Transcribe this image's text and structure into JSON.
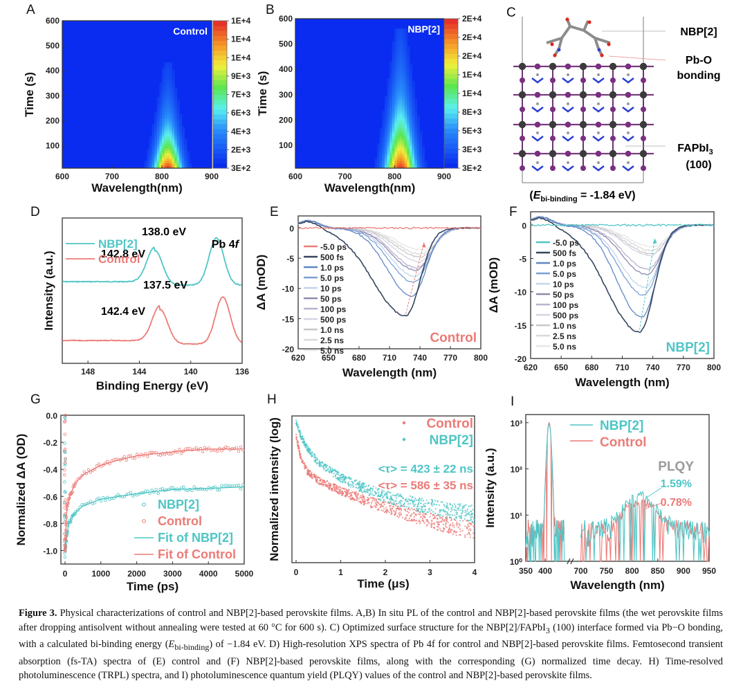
{
  "panels": {
    "A": {
      "label": "A"
    },
    "B": {
      "label": "B"
    },
    "C": {
      "label": "C"
    },
    "D": {
      "label": "D"
    },
    "E": {
      "label": "E"
    },
    "F": {
      "label": "F"
    },
    "G": {
      "label": "G"
    },
    "H": {
      "label": "H"
    },
    "I": {
      "label": "I"
    }
  },
  "colors": {
    "nbp": "#4fc5c5",
    "control": "#ec7b77",
    "heat_low": "#0a2cf0"
  },
  "chart_data": [
    {
      "id": "A",
      "type": "heatmap",
      "title": "Control",
      "xlabel": "Wavelength(nm)",
      "ylabel": "Time (s)",
      "xlim": [
        600,
        900
      ],
      "ylim": [
        10,
        600
      ],
      "xticks": [
        "600",
        "700",
        "800",
        "900"
      ],
      "yticks": [
        "100",
        "200",
        "300",
        "400",
        "500",
        "600"
      ],
      "colorbar_ticks": [
        "3E+2",
        "2E+3",
        "4E+3",
        "6E+3",
        "7E+3",
        "9E+3",
        "1E+4",
        "1E+4",
        "1E+4"
      ],
      "peak": {
        "wavelength": 812,
        "time": 10,
        "fwhm_nm": 45,
        "decay_s": 150,
        "tail_extent_s": 430
      }
    },
    {
      "id": "B",
      "type": "heatmap",
      "title": "NBP[2]",
      "xlabel": "Wavelength(nm)",
      "ylabel": "Time (s)",
      "xlim": [
        600,
        900
      ],
      "ylim": [
        10,
        600
      ],
      "xticks": [
        "600",
        "700",
        "800",
        "900"
      ],
      "yticks": [
        "100",
        "200",
        "300",
        "400",
        "500",
        "600"
      ],
      "colorbar_ticks": [
        "3E+2",
        "3E+3",
        "5E+3",
        "8E+3",
        "1E+4",
        "1E+4",
        "2E+4",
        "2E+4",
        "2E+4"
      ],
      "peak": {
        "wavelength": 812,
        "time": 10,
        "fwhm_nm": 50,
        "decay_s": 220,
        "tail_extent_s": 560
      }
    },
    {
      "id": "C",
      "type": "diagram",
      "annotations": [
        "NBP[2]",
        "Pb-O",
        "bonding",
        "FAPbI",
        "3",
        "(100)"
      ],
      "energy_label": {
        "prefix": "(",
        "symbol": "E",
        "subscript": "bi-binding",
        "value": " = -1.84 eV)"
      }
    },
    {
      "id": "D",
      "type": "line",
      "title": "Pb 4f",
      "xlabel": "Binding Energy (eV)",
      "ylabel": "Intensity (a.u.)",
      "xlim": [
        150,
        136
      ],
      "xticks": [
        "148",
        "144",
        "140",
        "136"
      ],
      "series": [
        {
          "name": "NBP[2]",
          "peaks_eV": [
            142.8,
            138.0
          ],
          "peak_labels": [
            "142.8 eV",
            "138.0 eV"
          ]
        },
        {
          "name": "Control",
          "peaks_eV": [
            142.4,
            137.5
          ],
          "peak_labels": [
            "142.4 eV",
            "137.5 eV"
          ]
        }
      ]
    },
    {
      "id": "E",
      "type": "line",
      "annotation": "Control",
      "xlabel": "Wavelength (nm)",
      "ylabel": "ΔA (mOD)",
      "xlim": [
        620,
        800
      ],
      "ylim": [
        -20,
        2
      ],
      "xticks": [
        "620",
        "650",
        "680",
        "710",
        "740",
        "770",
        "800"
      ],
      "yticks": [
        "0",
        "-5",
        "-10",
        "-15",
        "-20"
      ],
      "legend": [
        "-5.0 ps",
        "500 fs",
        "1.0 ps",
        "5.0 ps",
        "10 ps",
        "50 ps",
        "100 ps",
        "500 ps",
        "1.0 ns",
        "2.5 ns",
        "5.0 ns"
      ],
      "minima_mOD": [
        0,
        -14.5,
        -11.3,
        -9.0,
        -8.0,
        -7.0,
        -6.6,
        -5.6,
        -4.8,
        -4.3,
        -3.6
      ],
      "minima_nm": [
        0,
        726,
        732,
        734,
        735,
        736,
        737,
        739,
        740,
        741,
        742
      ]
    },
    {
      "id": "F",
      "type": "line",
      "annotation": "NBP[2]",
      "xlabel": "Wavelength (nm)",
      "ylabel": "ΔA (mOD)",
      "xlim": [
        620,
        800
      ],
      "ylim": [
        -20,
        2
      ],
      "xticks": [
        "620",
        "650",
        "680",
        "710",
        "740",
        "770",
        "800"
      ],
      "yticks": [
        "0",
        "-5",
        "-10",
        "-15",
        "-20"
      ],
      "legend": [
        "-5.0 ps",
        "500 fs",
        "1.0 ps",
        "5.0 ps",
        "10 ps",
        "50 ps",
        "100 ps",
        "500 ps",
        "1.0 ns",
        "2.5 ns",
        "5.0 ns"
      ],
      "minima_mOD": [
        0,
        -16.0,
        -13.8,
        -10.5,
        -9.3,
        -7.4,
        -6.6,
        -4.6,
        -4.3,
        -3.8,
        -3.2
      ],
      "minima_nm": [
        0,
        727,
        729,
        731,
        732,
        734,
        735,
        737,
        738,
        739,
        740
      ]
    },
    {
      "id": "G",
      "type": "scatter",
      "xlabel": "Time (ps)",
      "ylabel": "Normalized ΔA (OD)",
      "xlim": [
        0,
        5000
      ],
      "ylim": [
        -1.1,
        0
      ],
      "xticks": [
        "0",
        "1000",
        "2000",
        "3000",
        "4000",
        "5000"
      ],
      "yticks": [
        "0.0",
        "-0.2",
        "-0.4",
        "-0.6",
        "-0.8",
        "-1.0"
      ],
      "legend": [
        "NBP[2]",
        "Control",
        "Fit of NBP[2]",
        "Fit of Control"
      ],
      "series": [
        {
          "name": "NBP[2]",
          "x": [
            0,
            100,
            250,
            500,
            1000,
            1500,
            2000,
            3000,
            4000,
            5000
          ],
          "y": [
            -1.0,
            -0.8,
            -0.73,
            -0.67,
            -0.62,
            -0.6,
            -0.58,
            -0.55,
            -0.54,
            -0.53
          ]
        },
        {
          "name": "Control",
          "x": [
            0,
            50,
            150,
            300,
            500,
            1000,
            1500,
            2000,
            3000,
            4000,
            5000
          ],
          "y": [
            -1.0,
            -0.68,
            -0.58,
            -0.5,
            -0.44,
            -0.37,
            -0.33,
            -0.3,
            -0.27,
            -0.25,
            -0.25
          ]
        }
      ]
    },
    {
      "id": "H",
      "type": "scatter",
      "xlabel": "Time (μs)",
      "ylabel": "Normalized intensity (log)",
      "xlim": [
        0,
        4
      ],
      "xticks": [
        "0",
        "1",
        "2",
        "3",
        "4"
      ],
      "legend": [
        "Control",
        "NBP[2]"
      ],
      "annotations": [
        "<τ> = 423 ± 22 ns",
        "<τ> = 586 ± 35 ns"
      ],
      "series": [
        {
          "name": "Control",
          "x": [
            0,
            0.1,
            0.25,
            0.5,
            1,
            1.5,
            2,
            2.5,
            3,
            3.5,
            4
          ],
          "y_rel": [
            0.87,
            0.72,
            0.62,
            0.56,
            0.49,
            0.43,
            0.38,
            0.33,
            0.29,
            0.25,
            0.22
          ]
        },
        {
          "name": "NBP[2]",
          "x": [
            0,
            0.1,
            0.25,
            0.5,
            1,
            1.5,
            2,
            2.5,
            3,
            3.5,
            4
          ],
          "y_rel": [
            0.96,
            0.87,
            0.78,
            0.68,
            0.58,
            0.51,
            0.45,
            0.41,
            0.38,
            0.35,
            0.33
          ]
        }
      ]
    },
    {
      "id": "I",
      "type": "line",
      "xlabel": "Wavelength (nm)",
      "ylabel": "Intensity (a.u.)",
      "yscale": "log",
      "ylim": [
        1,
        1500
      ],
      "xticks": [
        "350",
        "400",
        "700",
        "750",
        "800",
        "850",
        "900",
        "950"
      ],
      "yticks": [
        "10⁰",
        "10¹",
        "10²",
        "10³"
      ],
      "axis_break_between": [
        450,
        700
      ],
      "legend": [
        "NBP[2]",
        "Control"
      ],
      "plqy_title": "PLQY",
      "plqy": [
        {
          "name": "NBP[2]",
          "value": "1.59%"
        },
        {
          "name": "Control",
          "value": "0.78%"
        }
      ],
      "excitation_peak": {
        "wavelength": 410,
        "intensity": 1000
      },
      "emission_peak": {
        "wavelength": 815,
        "nbp": 25,
        "control": 17
      }
    }
  ],
  "caption": {
    "lead": "Figure 3.",
    "part1": " Physical characterizations of control and NBP[2]-based perovskite films. A,B) In situ PL of the control and NBP[2]-based perovskite films (the wet perovskite films after dropping antisolvent without annealing were tested at 60 °C for 600 s). C) Optimized surface structure for the NBP[2]/FAPbI",
    "sub1": "3",
    "part2": " (100) interface formed via Pb−O bonding, with a calculated bi-binding energy (",
    "sym": "E",
    "sub2": "bi-binding",
    "part3": ") of −1.84 eV. D) High-resolution XPS spectra of Pb 4f for control and NBP[2]-based perovskite films. Femtosecond transient absorption (fs-TA) spectra of (E) control and (F) NBP[2]-based perovskite films, along with the corresponding (G) normalized time decay. H) Time-resolved photoluminescence (TRPL) spectra, and I) photoluminescence quantum yield (PLQY) values of the control and NBP[2]-based perovskite films."
  }
}
